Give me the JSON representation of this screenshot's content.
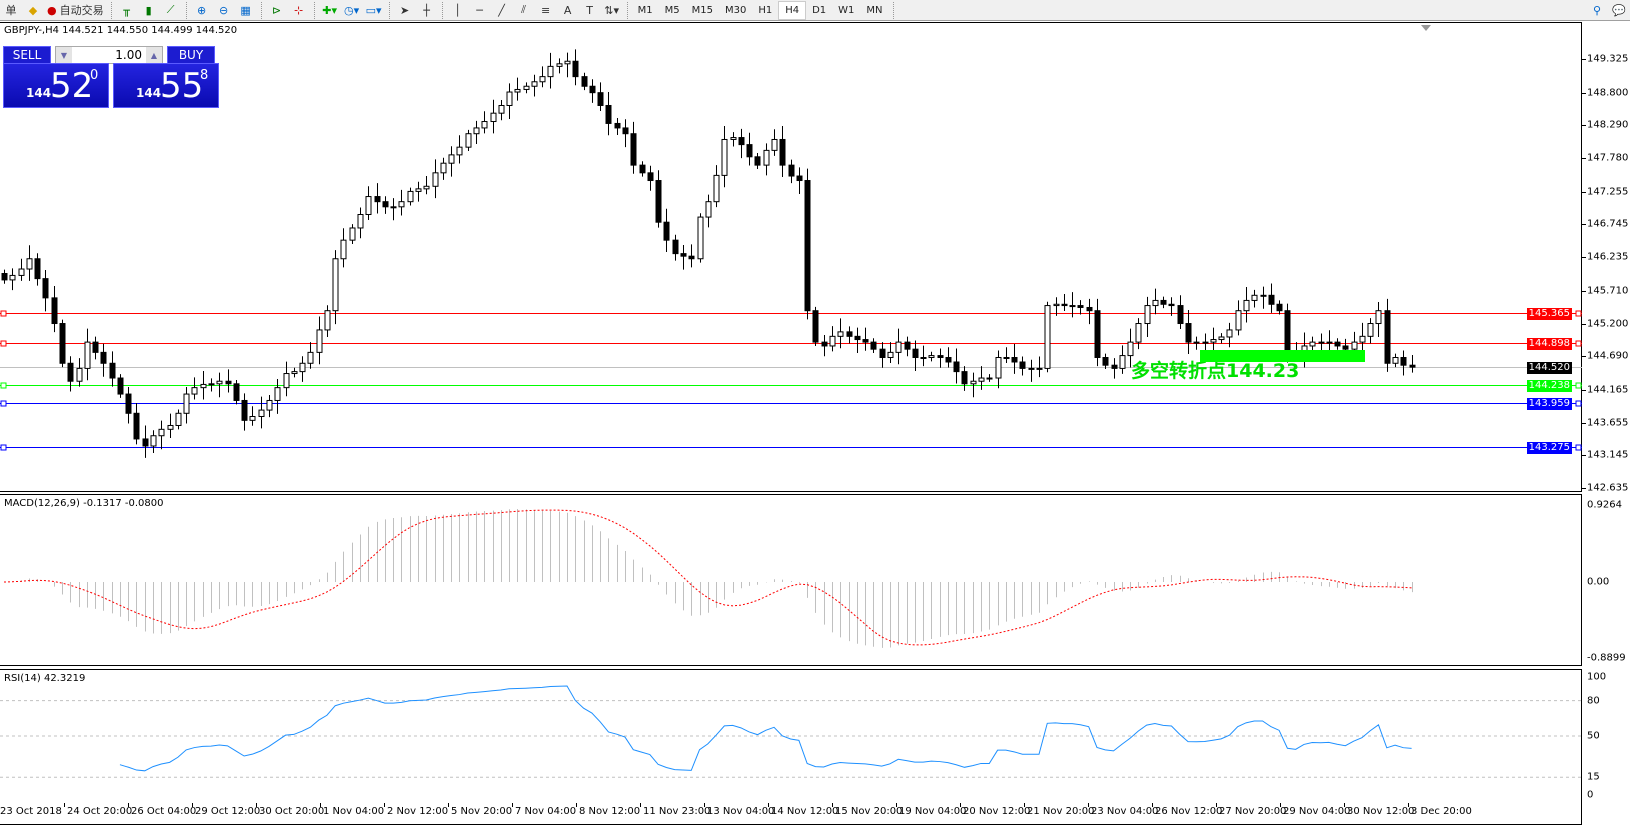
{
  "toolbar": {
    "new_order_label": "单",
    "autotrading_label": "自动交易",
    "timeframes": [
      "M1",
      "M5",
      "M15",
      "M30",
      "H1",
      "H4",
      "D1",
      "W1",
      "MN"
    ],
    "active_timeframe": "H4"
  },
  "chart": {
    "title": "GBPJPY-,H4  144.521 144.550 144.499 144.520",
    "symbol": "GBPJPY-",
    "period": "H4",
    "one_click": {
      "sell_label": "SELL",
      "buy_label": "BUY",
      "volume": "1.00",
      "sell_prefix": "144",
      "sell_big": "52",
      "sell_sup": "0",
      "buy_prefix": "144",
      "buy_big": "55",
      "buy_sup": "8"
    },
    "price_ticks": [
      "149.325",
      "148.800",
      "148.290",
      "147.780",
      "147.255",
      "146.745",
      "146.235",
      "145.710",
      "145.200",
      "144.690",
      "144.165",
      "143.655",
      "143.145",
      "142.635"
    ],
    "price_range": [
      142.635,
      149.325
    ],
    "hlines": [
      {
        "price": "145.365",
        "color": "#ff0000"
      },
      {
        "price": "144.898",
        "color": "#ff0000"
      },
      {
        "price": "144.520",
        "color": "#000000",
        "line": "#c0c0c0"
      },
      {
        "price": "144.238",
        "color": "#00ff00"
      },
      {
        "price": "143.959",
        "color": "#0000ff"
      },
      {
        "price": "143.275",
        "color": "#0000ff"
      }
    ],
    "annotation": "多空转折点144.23",
    "annotation_color": "#00e000",
    "bull_color": "#ffffff",
    "bear_color": "#000000",
    "closes": [
      145.88,
      145.95,
      146.05,
      146.21,
      145.9,
      145.6,
      145.2,
      144.58,
      144.3,
      144.5,
      144.91,
      144.75,
      144.58,
      144.35,
      144.1,
      143.8,
      143.4,
      143.29,
      143.45,
      143.55,
      143.61,
      143.8,
      144.1,
      144.2,
      144.25,
      144.26,
      144.3,
      144.26,
      144.0,
      143.69,
      143.75,
      143.85,
      144.0,
      144.2,
      144.42,
      144.45,
      144.58,
      144.75,
      145.1,
      145.4,
      146.21,
      146.5,
      146.69,
      146.9,
      147.18,
      147.1,
      147.02,
      147.02,
      147.1,
      147.26,
      147.3,
      147.34,
      147.55,
      147.7,
      147.83,
      147.95,
      148.16,
      148.25,
      148.35,
      148.48,
      148.6,
      148.81,
      148.85,
      148.9,
      148.97,
      149.05,
      149.21,
      149.25,
      149.29,
      149.05,
      148.9,
      148.8,
      148.6,
      148.32,
      148.25,
      148.16,
      147.67,
      147.55,
      147.43,
      146.78,
      146.5,
      146.29,
      146.25,
      146.21,
      146.86,
      147.1,
      147.51,
      148.07,
      148.1,
      147.99,
      147.8,
      147.67,
      147.9,
      148.07,
      147.67,
      147.5,
      147.43,
      145.4,
      144.91,
      144.85,
      145.0,
      145.07,
      145.0,
      144.95,
      144.91,
      144.8,
      144.67,
      144.75,
      144.91,
      144.8,
      144.67,
      144.67,
      144.7,
      144.67,
      144.6,
      144.45,
      144.26,
      144.3,
      144.35,
      144.35,
      144.67,
      144.67,
      144.6,
      144.5,
      144.5,
      144.5,
      145.48,
      145.5,
      145.48,
      145.48,
      145.45,
      145.4,
      144.67,
      144.55,
      144.5,
      144.7,
      144.91,
      145.2,
      145.48,
      145.56,
      145.5,
      145.48,
      145.2,
      144.91,
      144.9,
      144.91,
      144.95,
      144.99,
      145.1,
      145.4,
      145.56,
      145.64,
      145.64,
      145.5,
      145.4,
      144.75,
      144.7,
      144.85,
      144.91,
      144.9,
      144.91,
      144.85,
      144.8,
      144.91,
      145.0,
      145.2,
      145.4,
      144.58,
      144.67,
      144.55,
      144.52
    ]
  },
  "macd": {
    "label": "MACD(12,26,9) -0.1317 -0.0800",
    "ticks": [
      "0.9264",
      "0.00",
      "-0.8899"
    ],
    "range": [
      -0.8899,
      0.9264
    ],
    "histogram_color": "#c0c0c0",
    "signal_color": "#ff0000"
  },
  "rsi": {
    "label": "RSI(14) 42.3219",
    "ticks": [
      "100",
      "80",
      "50",
      "15",
      "0"
    ],
    "levels": [
      80,
      50,
      15
    ],
    "line_color": "#1e90ff"
  },
  "time_axis": [
    "23 Oct 2018",
    "24 Oct 20:00",
    "26 Oct 04:00",
    "29 Oct 12:00",
    "30 Oct 20:00",
    "1 Nov 04:00",
    "2 Nov 12:00",
    "5 Nov 20:00",
    "7 Nov 04:00",
    "8 Nov 12:00",
    "11 Nov 23:00",
    "13 Nov 04:00",
    "14 Nov 12:00",
    "15 Nov 20:00",
    "19 Nov 04:00",
    "20 Nov 12:00",
    "21 Nov 20:00",
    "23 Nov 04:00",
    "26 Nov 12:00",
    "27 Nov 20:00",
    "29 Nov 04:00",
    "30 Nov 12:00",
    "3 Dec 20:00"
  ]
}
